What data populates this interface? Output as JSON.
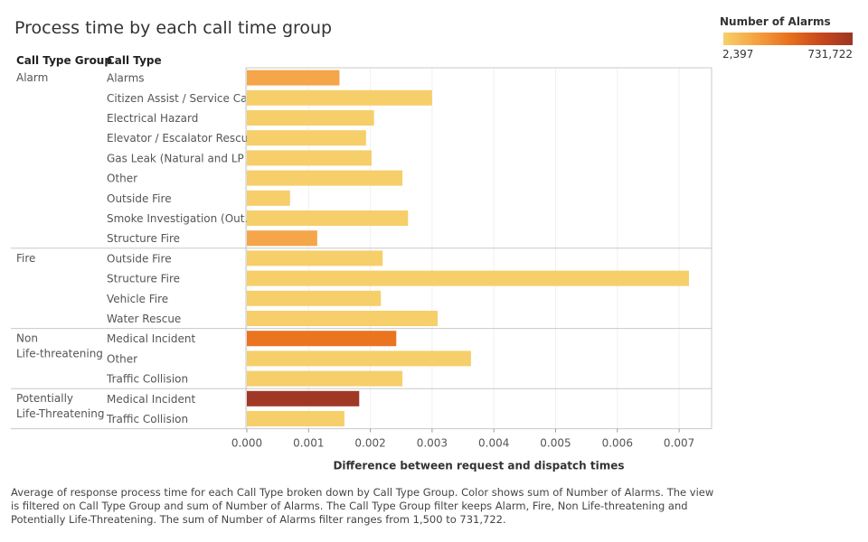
{
  "title": "Process time by each call time group",
  "legend": {
    "title": "Number of Alarms",
    "min_label": "2,397",
    "max_label": "731,722"
  },
  "headers": {
    "group": "Call Type Group",
    "type": "Call Type"
  },
  "caption": "Average of response process time for each Call Type broken down by Call Type Group.  Color shows sum of Number of Alarms. The view is filtered on Call Type Group and sum of Number of Alarms. The Call Type Group filter keeps Alarm, Fire, Non Life-threatening and Potentially Life-Threatening. The sum of Number of Alarms filter ranges from 1,500 to 731,722.",
  "chart_data": {
    "type": "bar",
    "orientation": "horizontal",
    "xlabel": "Difference between request and dispatch times",
    "xlim": [
      0,
      0.0075
    ],
    "xticks": [
      "0.000",
      "0.001",
      "0.002",
      "0.003",
      "0.004",
      "0.005",
      "0.006",
      "0.007"
    ],
    "groups": [
      {
        "name": "Alarm",
        "rows": [
          {
            "type": "Alarms",
            "value": 0.0015,
            "color": "#f5a54a"
          },
          {
            "type": "Citizen Assist / Service Call",
            "value": 0.003,
            "color": "#f6cf6a"
          },
          {
            "type": "Electrical Hazard",
            "value": 0.00206,
            "color": "#f6cf6a"
          },
          {
            "type": "Elevator / Escalator Rescue",
            "value": 0.00193,
            "color": "#f6cf6a"
          },
          {
            "type": "Gas Leak (Natural and LP ..",
            "value": 0.00202,
            "color": "#f6cf6a"
          },
          {
            "type": "Other",
            "value": 0.00252,
            "color": "#f6cf6a"
          },
          {
            "type": "Outside Fire",
            "value": 0.0007,
            "color": "#f6cf6a"
          },
          {
            "type": "Smoke Investigation (Out..",
            "value": 0.00261,
            "color": "#f6cf6a"
          },
          {
            "type": "Structure Fire",
            "value": 0.00114,
            "color": "#f5a54a"
          }
        ]
      },
      {
        "name": "Fire",
        "rows": [
          {
            "type": "Outside Fire",
            "value": 0.0022,
            "color": "#f6cf6a"
          },
          {
            "type": "Structure Fire",
            "value": 0.00716,
            "color": "#f6cf6a"
          },
          {
            "type": "Vehicle Fire",
            "value": 0.00217,
            "color": "#f6cf6a"
          },
          {
            "type": "Water Rescue",
            "value": 0.00309,
            "color": "#f6cf6a"
          }
        ]
      },
      {
        "name": "Non\nLife-threatening",
        "rows": [
          {
            "type": "Medical Incident",
            "value": 0.00242,
            "color": "#ea7420"
          },
          {
            "type": "Other",
            "value": 0.00363,
            "color": "#f6cf6a"
          },
          {
            "type": "Traffic Collision",
            "value": 0.00252,
            "color": "#f6cf6a"
          }
        ]
      },
      {
        "name": "Potentially\nLife-Threatening",
        "rows": [
          {
            "type": "Medical Incident",
            "value": 0.00182,
            "color": "#a13826"
          },
          {
            "type": "Traffic Collision",
            "value": 0.00158,
            "color": "#f6cf6a"
          }
        ]
      }
    ]
  }
}
